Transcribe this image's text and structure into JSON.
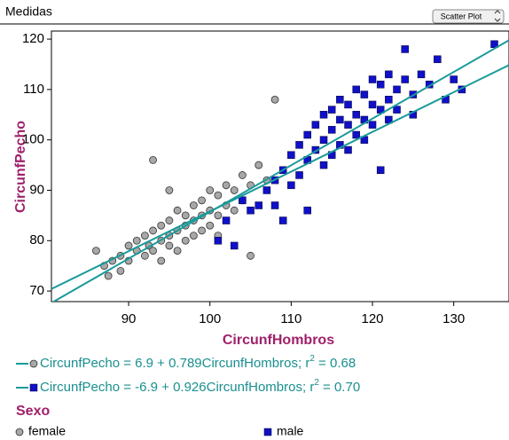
{
  "header": {
    "title": "Medidas",
    "view_menu": "Scatter Plot"
  },
  "chart_data": {
    "type": "scatter",
    "xlabel": "CircunfHombros",
    "ylabel": "CircunfPecho",
    "xlim": [
      80.5,
      136.8
    ],
    "ylim": [
      67.9,
      121.6
    ],
    "xticks": [
      90,
      100,
      110,
      120,
      130
    ],
    "yticks": [
      70,
      80,
      90,
      100,
      110,
      120
    ],
    "legend_title": "Sexo",
    "line_color": "#1a9a9a",
    "series": [
      {
        "name": "female",
        "color": "#a8a8a8",
        "marker": "circle",
        "x": [
          86,
          87,
          87.5,
          88,
          89,
          89,
          90,
          90,
          91,
          91,
          92,
          92,
          92.5,
          93,
          93,
          94,
          94,
          94,
          95,
          95,
          95,
          96,
          96,
          96,
          97,
          97,
          97,
          98,
          98,
          98,
          99,
          99,
          99,
          100,
          100,
          100,
          101,
          101,
          101,
          102,
          102,
          103,
          103,
          104,
          104,
          105,
          105,
          106,
          107,
          108,
          93,
          95
        ],
        "y": [
          78,
          75,
          73,
          76,
          77,
          74,
          79,
          76,
          78,
          80,
          81,
          77,
          79,
          82,
          78,
          83,
          80,
          76,
          84,
          81,
          79,
          86,
          82,
          78,
          85,
          83,
          80,
          87,
          84,
          81,
          88,
          85,
          82,
          90,
          86,
          83,
          89,
          85,
          81,
          91,
          87,
          90,
          86,
          93,
          88,
          91,
          77,
          95,
          92,
          108,
          96,
          90
        ]
      },
      {
        "name": "male",
        "color": "#1010c8",
        "marker": "square",
        "x": [
          101,
          102,
          103,
          104,
          105,
          106,
          107,
          108,
          108,
          109,
          110,
          110,
          111,
          111,
          112,
          112,
          113,
          113,
          114,
          114,
          114,
          115,
          115,
          115,
          116,
          116,
          116,
          117,
          117,
          117,
          118,
          118,
          118,
          119,
          119,
          119,
          120,
          120,
          120,
          121,
          121,
          121,
          122,
          122,
          122,
          123,
          123,
          124,
          124,
          125,
          125,
          126,
          127,
          128,
          129,
          130,
          131,
          135,
          112,
          109
        ],
        "y": [
          80,
          84,
          79,
          88,
          86,
          87,
          90,
          92,
          87,
          94,
          97,
          91,
          99,
          93,
          101,
          96,
          103,
          98,
          105,
          100,
          95,
          106,
          102,
          97,
          108,
          104,
          99,
          107,
          103,
          98,
          110,
          105,
          101,
          109,
          104,
          100,
          112,
          107,
          103,
          111,
          106,
          94,
          113,
          108,
          104,
          110,
          106,
          118,
          112,
          109,
          105,
          113,
          111,
          116,
          108,
          112,
          110,
          119,
          86,
          84
        ]
      }
    ],
    "fits": [
      {
        "series": "female",
        "intercept": 6.9,
        "slope": 0.789,
        "text": "CircunfPecho = 6.9 + 0.789CircunfHombros; r",
        "sup": "2",
        "tail": " = 0.68"
      },
      {
        "series": "male",
        "intercept": -6.9,
        "slope": 0.926,
        "text": "CircunfPecho = -6.9 + 0.926CircunfHombros; r",
        "sup": "2",
        "tail": " = 0.70"
      }
    ]
  }
}
